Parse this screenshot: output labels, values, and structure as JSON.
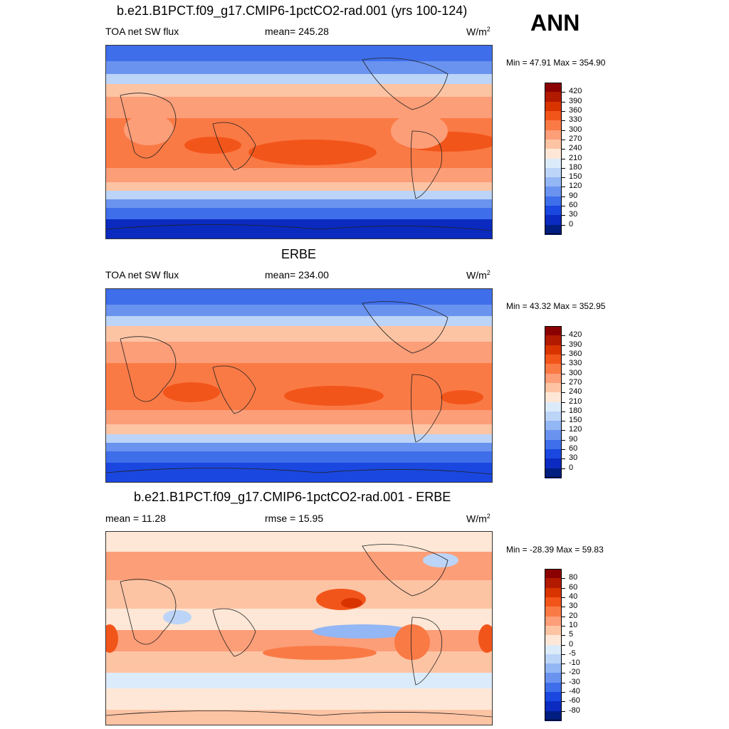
{
  "season": "ANN",
  "panels": [
    {
      "title": "b.e21.B1PCT.f09_g17.CMIP6-1pctCO2-rad.001 (yrs 100-124)",
      "left_label": "TOA net SW flux",
      "center_label": "mean= 245.28",
      "units_base": "W/m",
      "units_exp": "2",
      "minmax": "Min =  47.91 Max = 354.90",
      "colorbar": {
        "labels": [
          "420",
          "390",
          "360",
          "330",
          "300",
          "270",
          "240",
          "210",
          "180",
          "150",
          "120",
          "90",
          "60",
          "30",
          "0"
        ],
        "colors": [
          "#8B0000",
          "#B21A00",
          "#D93300",
          "#F2551A",
          "#FA7A45",
          "#FC9E78",
          "#FDC4A4",
          "#FEE7D6",
          "#DCEBFA",
          "#BCD4F7",
          "#93B6F4",
          "#6A93F0",
          "#3F6EEA",
          "#1A47DF",
          "#0A2AC0",
          "#001E80"
        ]
      }
    },
    {
      "title": "ERBE",
      "left_label": "TOA net SW flux",
      "center_label": "mean= 234.00",
      "units_base": "W/m",
      "units_exp": "2",
      "minmax": "Min =  43.32 Max = 352.95",
      "colorbar": {
        "labels": [
          "420",
          "390",
          "360",
          "330",
          "300",
          "270",
          "240",
          "210",
          "180",
          "150",
          "120",
          "90",
          "60",
          "30",
          "0"
        ],
        "colors": [
          "#8B0000",
          "#B21A00",
          "#D93300",
          "#F2551A",
          "#FA7A45",
          "#FC9E78",
          "#FDC4A4",
          "#FEE7D6",
          "#DCEBFA",
          "#BCD4F7",
          "#93B6F4",
          "#6A93F0",
          "#3F6EEA",
          "#1A47DF",
          "#0A2AC0",
          "#001E80"
        ]
      }
    },
    {
      "title": "b.e21.B1PCT.f09_g17.CMIP6-1pctCO2-rad.001 - ERBE",
      "left_label": "mean =  11.28",
      "center_label": "rmse =  15.95",
      "units_base": "W/m",
      "units_exp": "2",
      "minmax": "Min = -28.39 Max =  59.83",
      "colorbar": {
        "labels": [
          "80",
          "60",
          "40",
          "30",
          "20",
          "10",
          "5",
          "0",
          "-5",
          "-10",
          "-20",
          "-30",
          "-40",
          "-60",
          "-80"
        ],
        "colors": [
          "#8B0000",
          "#B21A00",
          "#D93300",
          "#F2551A",
          "#FA7A45",
          "#FC9E78",
          "#FDC4A4",
          "#FEE7D6",
          "#DCEBFA",
          "#BCD4F7",
          "#93B6F4",
          "#6A93F0",
          "#3F6EEA",
          "#1A47DF",
          "#0A2AC0",
          "#001E80"
        ]
      }
    }
  ]
}
